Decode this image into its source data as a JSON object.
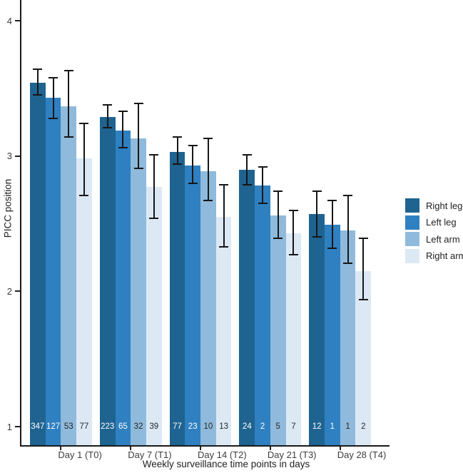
{
  "chart_data": {
    "type": "bar",
    "title": "",
    "ylabel": "PICC position",
    "xlabel": "Weekly surveillance time points in days",
    "categories": [
      "Day 1 (T0)",
      "Day 7 (T1)",
      "Day 14 (T2)",
      "Day 21 (T3)",
      "Day 28 (T4)"
    ],
    "series": [
      {
        "name": "Right leg",
        "color": "#1F6390",
        "values": [
          3.54,
          3.29,
          3.03,
          2.9,
          2.57
        ],
        "ci_low": [
          3.45,
          3.21,
          2.94,
          2.79,
          2.4
        ],
        "ci_high": [
          3.64,
          3.38,
          3.14,
          3.01,
          2.74
        ],
        "counts": [
          347,
          223,
          77,
          24,
          12
        ],
        "count_label_color": "#FFFFFF"
      },
      {
        "name": "Left leg",
        "color": "#2E80C1",
        "values": [
          3.43,
          3.19,
          2.93,
          2.78,
          2.49
        ],
        "ci_low": [
          3.28,
          3.06,
          2.8,
          2.65,
          2.32
        ],
        "ci_high": [
          3.58,
          3.33,
          3.08,
          2.92,
          2.67
        ],
        "counts": [
          127,
          65,
          23,
          2,
          1
        ],
        "count_label_color": "#FFFFFF"
      },
      {
        "name": "Left arm",
        "color": "#8FBADC",
        "values": [
          3.37,
          3.13,
          2.89,
          2.56,
          2.45
        ],
        "ci_low": [
          3.14,
          2.91,
          2.67,
          2.39,
          2.21
        ],
        "ci_high": [
          3.63,
          3.39,
          3.13,
          2.74,
          2.71
        ],
        "counts": [
          53,
          32,
          10,
          5,
          1
        ],
        "count_label_color": "#262626"
      },
      {
        "name": "Right arm",
        "color": "#DCE9F5",
        "values": [
          2.98,
          2.77,
          2.55,
          2.43,
          2.15
        ],
        "ci_low": [
          2.71,
          2.54,
          2.33,
          2.27,
          1.94
        ],
        "ci_high": [
          3.24,
          3.01,
          2.79,
          2.6,
          2.39
        ],
        "counts": [
          77,
          39,
          13,
          7,
          2
        ],
        "count_label_color": "#262626"
      }
    ],
    "yticks": [
      4,
      3,
      2,
      1
    ],
    "ylim": [
      0.86,
      4.15
    ],
    "grid": false,
    "error_bars": true,
    "legend_position": "right",
    "count_labels_note": "sample size shown at base of each bar at y=1 level"
  }
}
